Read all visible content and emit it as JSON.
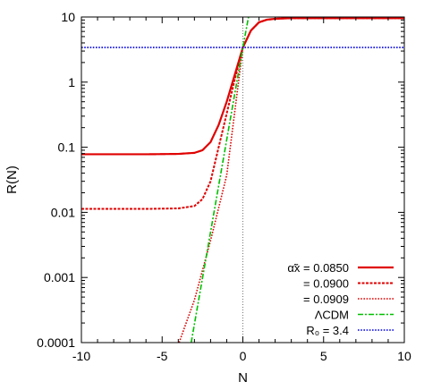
{
  "chart_data": {
    "type": "line",
    "xlabel": "N",
    "ylabel": "R(N)",
    "xlim": [
      -10,
      10
    ],
    "ylim": [
      0.0001,
      10
    ],
    "yscale": "log",
    "grid": false,
    "legend_position": "bottom-right",
    "x_ticks": [
      {
        "value": -10,
        "label": "-10"
      },
      {
        "value": -5,
        "label": "-5"
      },
      {
        "value": 0,
        "label": "0"
      },
      {
        "value": 5,
        "label": "5"
      },
      {
        "value": 10,
        "label": "10"
      }
    ],
    "y_ticks": [
      {
        "value": 0.0001,
        "label": "0.0001"
      },
      {
        "value": 0.001,
        "label": "0.001"
      },
      {
        "value": 0.01,
        "label": "0.01"
      },
      {
        "value": 0.1,
        "label": "0.1"
      },
      {
        "value": 1,
        "label": "1"
      },
      {
        "value": 10,
        "label": "10"
      }
    ],
    "vertical_reference_line_x": 0,
    "series": [
      {
        "name": "α̃x = 0.0850",
        "color": "#e00000",
        "style": "solid",
        "x": [
          -10,
          -6,
          -4,
          -3,
          -2.5,
          -2,
          -1.5,
          -1,
          -0.5,
          0,
          0.5,
          1,
          1.5,
          2,
          3,
          5,
          10
        ],
        "y": [
          0.078,
          0.078,
          0.079,
          0.082,
          0.09,
          0.12,
          0.22,
          0.5,
          1.3,
          3.4,
          6.2,
          8.3,
          9.1,
          9.4,
          9.6,
          9.6,
          9.6
        ]
      },
      {
        "name": "= 0.0900",
        "color": "#e00000",
        "style": "dashed",
        "x": [
          -10,
          -6,
          -4,
          -3,
          -2.5,
          -2,
          -1.5,
          -1,
          -0.5,
          0,
          0.5,
          1,
          1.5,
          2,
          3,
          5,
          10
        ],
        "y": [
          0.0113,
          0.0113,
          0.0115,
          0.0125,
          0.016,
          0.03,
          0.1,
          0.33,
          1.1,
          3.4,
          6.2,
          8.3,
          9.1,
          9.4,
          9.6,
          9.6,
          9.6
        ]
      },
      {
        "name": "= 0.0909",
        "color": "#e00000",
        "style": "dotted",
        "x": [
          -3.95,
          -3,
          -2,
          -1,
          0,
          0.5,
          1,
          1.5,
          2,
          3,
          5,
          10
        ],
        "y": [
          0.0001,
          0.00045,
          0.0037,
          0.037,
          3.4,
          6.2,
          8.3,
          9.1,
          9.4,
          9.6,
          9.6,
          9.6
        ]
      },
      {
        "name": "ΛCDM",
        "color": "#00c000",
        "style": "dashdot",
        "x": [
          -3.2,
          0,
          0.35
        ],
        "y": [
          0.0001,
          3.4,
          10
        ]
      },
      {
        "name": "R₀ = 3.4",
        "color": "#0000e0",
        "style": "dotted",
        "x": [
          -10,
          10
        ],
        "y": [
          3.4,
          3.4
        ]
      }
    ]
  }
}
